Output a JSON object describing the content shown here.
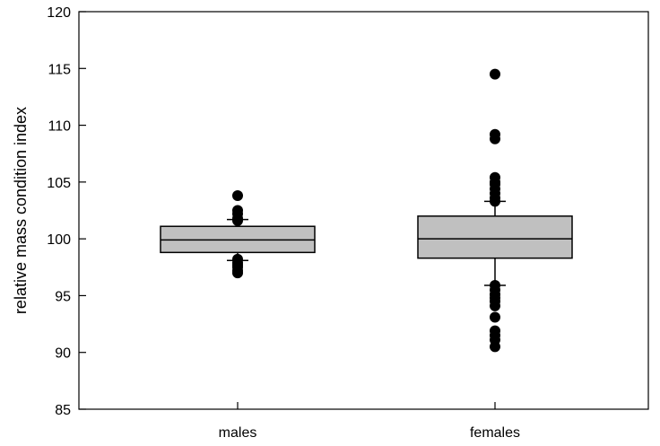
{
  "chart_data": {
    "type": "box",
    "ylabel": "relative mass condition index",
    "xlabel": "",
    "ylim": [
      85,
      120
    ],
    "yticks": [
      85,
      90,
      95,
      100,
      105,
      110,
      115,
      120
    ],
    "grid": false,
    "box_color": "#c0c0c0",
    "categories": [
      "males",
      "females"
    ],
    "boxes": [
      {
        "category": "males",
        "whisker_low": 98.1,
        "q1": 98.8,
        "median": 99.9,
        "q3": 101.1,
        "whisker_high": 101.7,
        "outliers": [
          103.8,
          102.5,
          102.2,
          101.8,
          101.6,
          98.2,
          97.9,
          97.7,
          97.5,
          97.2,
          97.0
        ]
      },
      {
        "category": "females",
        "whisker_low": 95.9,
        "q1": 98.3,
        "median": 100.0,
        "q3": 102.0,
        "whisker_high": 103.3,
        "outliers": [
          114.5,
          109.2,
          108.8,
          105.4,
          105.0,
          104.8,
          104.4,
          104.0,
          103.6,
          103.3,
          95.9,
          95.5,
          95.1,
          94.8,
          94.5,
          94.1,
          93.1,
          91.9,
          91.5,
          91.1,
          90.5
        ]
      }
    ]
  }
}
